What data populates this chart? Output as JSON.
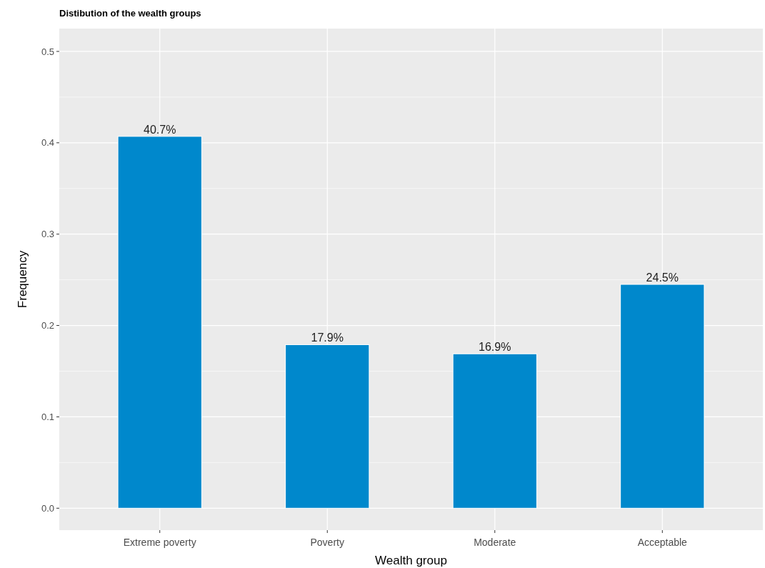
{
  "chart_data": {
    "type": "bar",
    "title": "Distibution of the wealth groups",
    "xlabel": "Wealth group",
    "ylabel": "Frequency",
    "categories": [
      "Extreme poverty",
      "Poverty",
      "Moderate",
      "Acceptable"
    ],
    "values": [
      0.407,
      0.179,
      0.169,
      0.245
    ],
    "value_labels": [
      "40.7%",
      "17.9%",
      "16.9%",
      "24.5%"
    ],
    "color": "#0088cc",
    "ylim": [
      -0.024,
      0.525
    ],
    "yticks": [
      {
        "value": 0,
        "label": "0.0"
      },
      {
        "value": 0.1,
        "label": "0.1"
      },
      {
        "value": 0.2,
        "label": "0.2"
      },
      {
        "value": 0.3,
        "label": "0.3"
      },
      {
        "value": 0.4,
        "label": "0.4"
      },
      {
        "value": 0.5,
        "label": "0.5"
      }
    ],
    "grid": true
  }
}
